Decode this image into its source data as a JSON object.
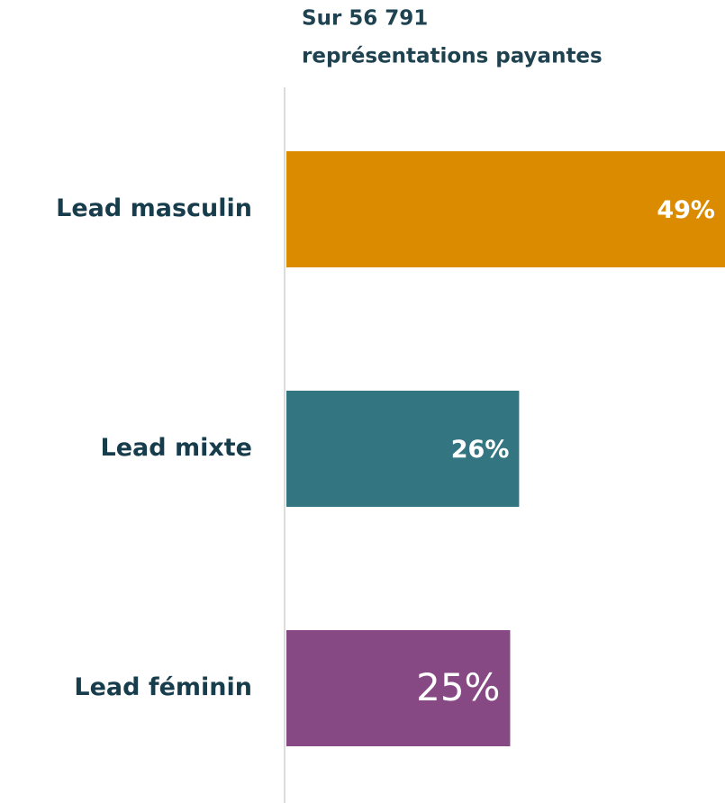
{
  "chart_data": {
    "type": "hbar",
    "title": [
      "Sur 56 791",
      "représentations payantes"
    ],
    "categories": [
      "Lead masculin",
      "Lead mixte",
      "Lead féminin"
    ],
    "values": [
      49,
      26,
      25
    ],
    "value_labels": [
      "49%",
      "26%",
      "25%"
    ],
    "colors": [
      "#db8b00",
      "#337682",
      "#874984"
    ]
  }
}
